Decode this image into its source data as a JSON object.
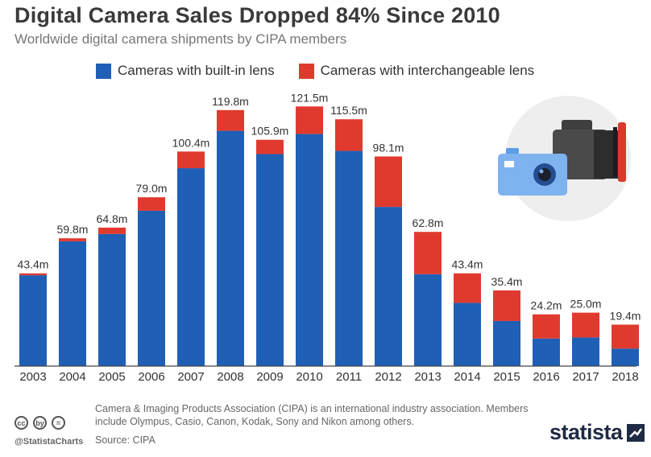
{
  "header": {
    "title": "Digital Camera Sales Dropped 84% Since 2010",
    "subtitle": "Worldwide digital camera shipments by CIPA members"
  },
  "legend": [
    {
      "label": "Cameras with built-in lens",
      "color": "#1f5fb6"
    },
    {
      "label": "Cameras with interchangeable lens",
      "color": "#e03a2e"
    }
  ],
  "chart_data": {
    "type": "bar",
    "stacked": true,
    "title": "Digital Camera Sales Dropped 84% Since 2010",
    "xlabel": "",
    "ylabel": "",
    "categories": [
      "2003",
      "2004",
      "2005",
      "2006",
      "2007",
      "2008",
      "2009",
      "2010",
      "2011",
      "2012",
      "2013",
      "2014",
      "2015",
      "2016",
      "2017",
      "2018"
    ],
    "series": [
      {
        "name": "Cameras with built-in lens",
        "color": "#1f5fb6",
        "values": [
          42.5,
          58.4,
          61.8,
          72.7,
          92.6,
          110.1,
          99.2,
          108.6,
          100.7,
          74.5,
          43.0,
          29.6,
          21.1,
          12.9,
          13.4,
          8.2
        ]
      },
      {
        "name": "Cameras with interchangeable lens",
        "color": "#e03a2e",
        "values": [
          0.9,
          1.4,
          3.0,
          6.3,
          7.8,
          9.7,
          6.7,
          12.9,
          14.8,
          23.6,
          19.8,
          13.8,
          14.3,
          11.3,
          11.6,
          11.2
        ]
      }
    ],
    "total_labels": [
      "43.4m",
      "59.8m",
      "64.8m",
      "79.0m",
      "100.4m",
      "119.8m",
      "105.9m",
      "121.5m",
      "115.5m",
      "98.1m",
      "62.8m",
      "43.4m",
      "35.4m",
      "24.2m",
      "25.0m",
      "19.4m"
    ],
    "ylim": [
      0,
      125
    ],
    "grid": false
  },
  "footer": {
    "note": "Camera & Imaging Products Association (CIPA) is an international industry association. Members include Olympus, Casio, Canon, Kodak, Sony and Nikon among others.",
    "source": "Source: CIPA",
    "handle": "@StatistaCharts",
    "brand": "statista",
    "license_icons": [
      "cc",
      "by",
      "="
    ]
  }
}
